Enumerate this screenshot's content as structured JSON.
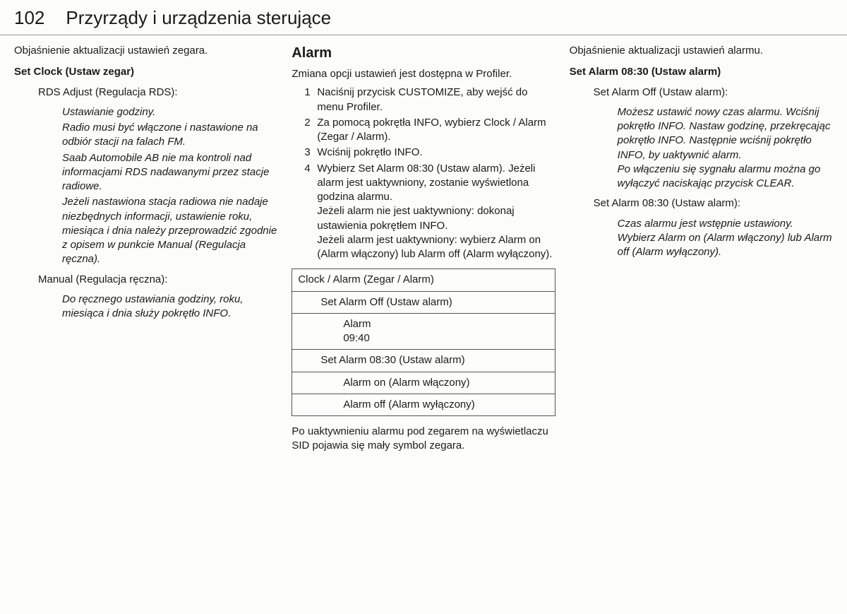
{
  "header": {
    "page_number": "102",
    "title": "Przyrządy i urządzenia sterujące"
  },
  "col1": {
    "intro": "Objaśnienie aktualizacji ustawień zegara.",
    "heading": "Set Clock (Ustaw zegar)",
    "rds_label": "RDS Adjust (Regulacja RDS):",
    "rds_body_1": "Ustawianie godziny.",
    "rds_body_2": "Radio musi być włączone i nastawione na odbiór stacji na falach FM.",
    "rds_body_3": "Saab Automobile AB nie ma kontroli nad informacjami RDS nadawanymi przez stacje radiowe.",
    "rds_body_4": "Jeżeli nastawiona stacja radiowa nie nadaje niezbędnych informacji, ustawienie roku, miesiąca i dnia należy przeprowadzić zgodnie z opisem w punkcie Manual (Regulacja ręczna).",
    "manual_label": "Manual (Regulacja ręczna):",
    "manual_body": "Do ręcznego ustawiania godziny, roku, miesiąca i dnia służy pokrętło INFO."
  },
  "col2": {
    "heading": "Alarm",
    "intro": "Zmiana opcji ustawień jest dostępna w Profiler.",
    "steps": {
      "s1": "Naciśnij przycisk CUSTOMIZE, aby wejść do menu Profiler.",
      "s2": "Za pomocą pokrętła INFO, wybierz Clock / Alarm (Zegar / Alarm).",
      "s3": "Wciśnij pokrętło INFO.",
      "s4": "Wybierz Set Alarm 08:30 (Ustaw alarm). Jeżeli alarm jest uaktywniony, zostanie wyświetlona godzina alarmu.\nJeżeli alarm nie jest uaktywniony: dokonaj ustawienia pokrętłem INFO.\nJeżeli alarm jest uaktywniony: wybierz Alarm on (Alarm włączony) lub Alarm off (Alarm wyłączony)."
    },
    "table": {
      "r1": "Clock / Alarm (Zegar / Alarm)",
      "r2": "Set Alarm Off (Ustaw alarm)",
      "r3": "Alarm\n09:40",
      "r4": "Set Alarm 08:30 (Ustaw alarm)",
      "r5": "Alarm on (Alarm włączony)",
      "r6": "Alarm off (Alarm wyłączony)"
    },
    "after": "Po uaktywnieniu alarmu pod zegarem na wyświetlaczu SID pojawia się mały symbol zegara."
  },
  "col3": {
    "intro": "Objaśnienie aktualizacji ustawień alarmu.",
    "heading": "Set Alarm 08:30 (Ustaw alarm)",
    "off_label": "Set Alarm Off (Ustaw alarm):",
    "off_body": "Możesz ustawić nowy czas alarmu. Wciśnij pokrętło INFO. Nastaw godzinę, przekręcając pokrętło INFO. Następnie wciśnij pokrętło INFO, by uaktywnić alarm.\nPo włączeniu się sygnału alarmu można go wyłączyć naciskając przycisk CLEAR.",
    "on_label": "Set Alarm 08:30 (Ustaw alarm):",
    "on_body": "Czas alarmu jest wstępnie ustawiony. Wybierz Alarm on (Alarm włączony) lub Alarm off (Alarm wyłączony)."
  }
}
